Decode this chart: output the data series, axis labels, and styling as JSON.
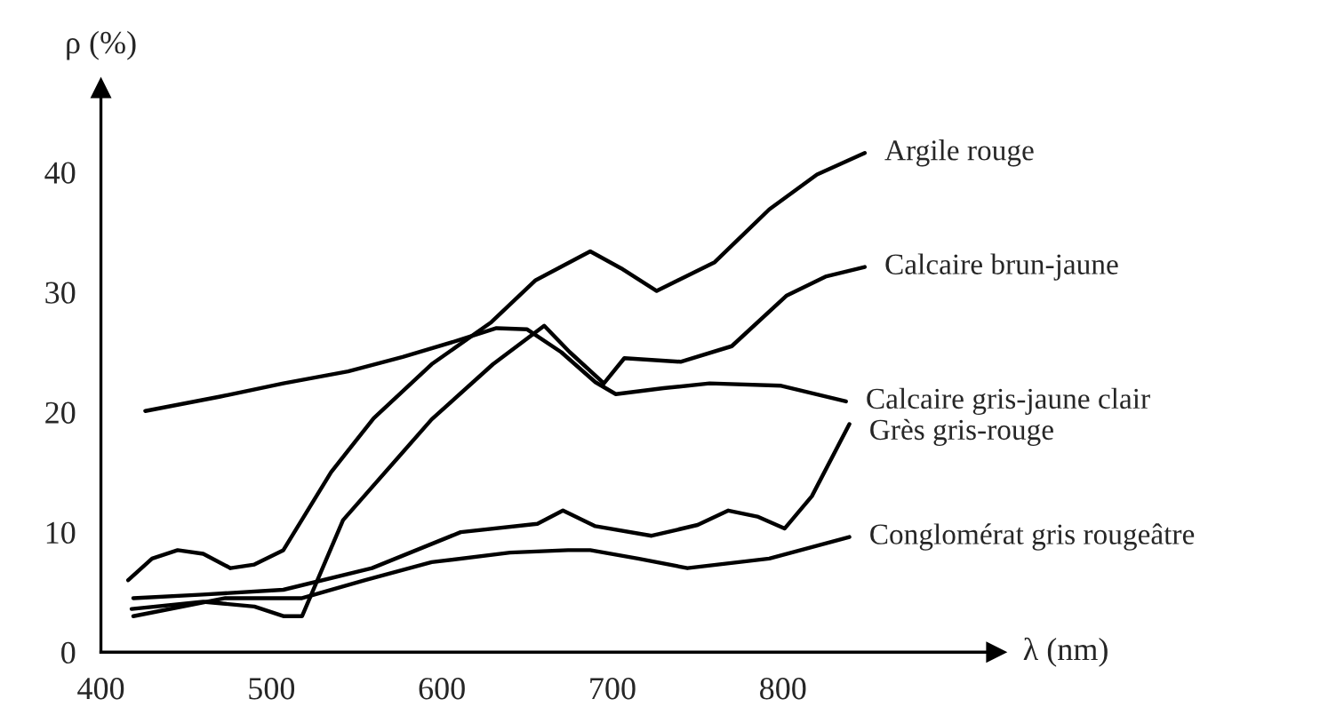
{
  "chart_data": {
    "type": "line",
    "xlabel": "λ (nm)",
    "ylabel": "ρ (%)",
    "xlim": [
      400,
      925
    ],
    "ylim": [
      0,
      47
    ],
    "xticks": [
      400,
      500,
      600,
      700,
      800
    ],
    "yticks": [
      0,
      10,
      20,
      30,
      40
    ],
    "grid": false,
    "legend": false,
    "line_style": "solid",
    "marker": "none",
    "series": [
      {
        "name": "Argile rouge",
        "color": "#000000",
        "x": [
          416,
          430,
          445,
          460,
          476,
          490,
          507,
          535,
          560,
          594,
          629,
          655,
          687,
          705,
          726,
          760,
          792,
          820,
          848
        ],
        "values": [
          6,
          7.8,
          8.5,
          8.2,
          7,
          7.3,
          8.5,
          15,
          19.5,
          24,
          27.5,
          31,
          33.4,
          32,
          30.1,
          32.5,
          36.9,
          39.8,
          41.6
        ]
      },
      {
        "name": "Calcaire brun-jaune",
        "color": "#000000",
        "x": [
          418,
          460,
          490,
          507,
          518,
          542,
          594,
          630,
          660,
          675,
          695,
          707,
          740,
          770,
          802,
          825,
          848
        ],
        "values": [
          3.6,
          4.2,
          3.8,
          3,
          3,
          11,
          19.4,
          24,
          27.2,
          25,
          22.4,
          24.5,
          24.2,
          25.5,
          29.7,
          31.3,
          32.1
        ]
      },
      {
        "name": "Calcaire gris-jaune clair",
        "color": "#000000",
        "x": [
          426,
          470,
          507,
          545,
          577,
          610,
          632,
          650,
          670,
          690,
          702,
          730,
          757,
          799,
          837
        ],
        "values": [
          20.1,
          21.3,
          22.4,
          23.4,
          24.6,
          26,
          27,
          26.9,
          25,
          22.5,
          21.5,
          22,
          22.4,
          22.2,
          20.9
        ]
      },
      {
        "name": "Grès gris-rouge",
        "color": "#000000",
        "x": [
          419,
          460,
          507,
          559,
          611,
          656,
          671,
          690,
          723,
          750,
          768,
          785,
          801,
          817,
          839
        ],
        "values": [
          4.5,
          4.8,
          5.2,
          7,
          10,
          10.7,
          11.8,
          10.5,
          9.7,
          10.6,
          11.8,
          11.3,
          10.3,
          13,
          19
        ]
      },
      {
        "name": "Conglomérat gris rougeâtre",
        "color": "#000000",
        "x": [
          419,
          473,
          518,
          555,
          594,
          640,
          674,
          687,
          715,
          744,
          792,
          839
        ],
        "values": [
          3,
          4.5,
          4.5,
          6,
          7.5,
          8.3,
          8.5,
          8.5,
          7.8,
          7,
          7.8,
          9.6
        ]
      }
    ]
  }
}
